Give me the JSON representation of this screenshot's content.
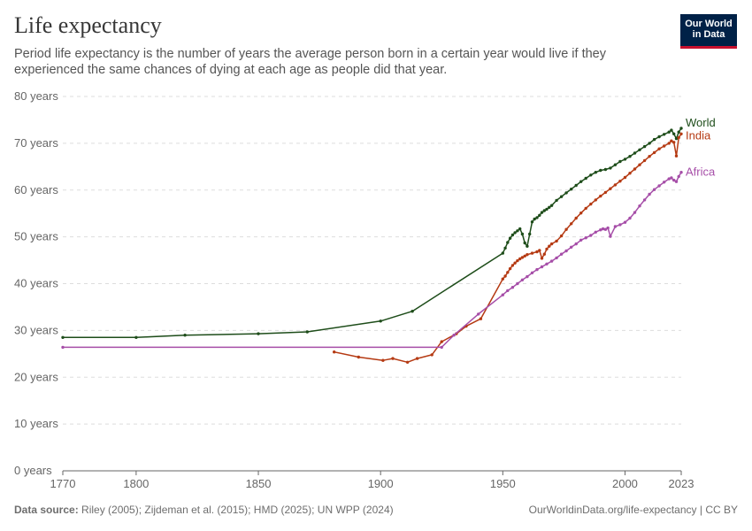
{
  "header": {
    "title": "Life expectancy",
    "subtitle": "Period life expectancy is the number of years the average person born in a certain year would live if they experienced the same chances of dying at each age as people did that year.",
    "logo_line1": "Our World",
    "logo_line2": "in Data"
  },
  "footer": {
    "source_label": "Data source:",
    "source_text": " Riley (2005); Zijdeman et al. (2015); HMD (2025); UN WPP (2024)",
    "link_text": "OurWorldinData.org/life-expectancy | CC BY"
  },
  "colors": {
    "World": "#1e4d1a",
    "India": "#b53a13",
    "Africa": "#a64ea8",
    "grid": "#dddddd",
    "axis": "#666666"
  },
  "chart_data": {
    "type": "line",
    "title": "Life expectancy",
    "xlim": [
      1770,
      2023
    ],
    "ylim": [
      0,
      80
    ],
    "x_ticks": [
      {
        "value": 1770,
        "label": "1770"
      },
      {
        "value": 1800,
        "label": "1800"
      },
      {
        "value": 1850,
        "label": "1850"
      },
      {
        "value": 1900,
        "label": "1900"
      },
      {
        "value": 1950,
        "label": "1950"
      },
      {
        "value": 2000,
        "label": "2000"
      },
      {
        "value": 2023,
        "label": "2023"
      }
    ],
    "y_ticks": [
      {
        "value": 0,
        "label": "0 years"
      },
      {
        "value": 10,
        "label": "10 years"
      },
      {
        "value": 20,
        "label": "20 years"
      },
      {
        "value": 30,
        "label": "30 years"
      },
      {
        "value": 40,
        "label": "40 years"
      },
      {
        "value": 50,
        "label": "50 years"
      },
      {
        "value": 60,
        "label": "60 years"
      },
      {
        "value": 70,
        "label": "70 years"
      },
      {
        "value": 80,
        "label": "80 years"
      }
    ],
    "grid": true,
    "legend": "line-end labels",
    "series": [
      {
        "name": "World",
        "x": [
          1770,
          1800,
          1820,
          1850,
          1870,
          1900,
          1913,
          1950,
          1951,
          1952,
          1953,
          1954,
          1955,
          1956,
          1957,
          1958,
          1959,
          1960,
          1961,
          1962,
          1963,
          1964,
          1965,
          1966,
          1967,
          1968,
          1969,
          1970,
          1972,
          1974,
          1976,
          1978,
          1980,
          1982,
          1984,
          1986,
          1988,
          1990,
          1992,
          1994,
          1996,
          1998,
          2000,
          2002,
          2004,
          2006,
          2008,
          2010,
          2012,
          2014,
          2016,
          2018,
          2019,
          2020,
          2021,
          2022,
          2023
        ],
        "y": [
          28.5,
          28.5,
          29.0,
          29.3,
          29.7,
          32.0,
          34.1,
          46.5,
          47.6,
          48.8,
          49.7,
          50.4,
          50.9,
          51.3,
          51.7,
          50.6,
          48.7,
          48.0,
          50.6,
          53.2,
          53.8,
          54.1,
          54.6,
          55.2,
          55.6,
          55.9,
          56.3,
          56.7,
          57.8,
          58.6,
          59.4,
          60.2,
          61.0,
          61.8,
          62.5,
          63.2,
          63.8,
          64.2,
          64.4,
          64.7,
          65.4,
          66.1,
          66.6,
          67.2,
          67.9,
          68.6,
          69.3,
          70.0,
          70.8,
          71.4,
          71.9,
          72.4,
          72.8,
          72.0,
          71.0,
          72.4,
          73.2
        ]
      },
      {
        "name": "India",
        "x": [
          1881,
          1891,
          1901,
          1905,
          1911,
          1915,
          1921,
          1925,
          1931,
          1935,
          1941,
          1950,
          1951,
          1952,
          1953,
          1954,
          1955,
          1956,
          1957,
          1958,
          1959,
          1960,
          1962,
          1964,
          1965,
          1966,
          1967,
          1968,
          1969,
          1970,
          1972,
          1974,
          1976,
          1978,
          1980,
          1982,
          1984,
          1986,
          1988,
          1990,
          1992,
          1994,
          1996,
          1998,
          2000,
          2002,
          2004,
          2006,
          2008,
          2010,
          2012,
          2014,
          2016,
          2018,
          2019,
          2020,
          2021,
          2022,
          2023
        ],
        "y": [
          25.4,
          24.3,
          23.6,
          24.0,
          23.2,
          24.0,
          24.8,
          27.6,
          29.3,
          30.9,
          32.5,
          41.0,
          41.6,
          42.4,
          43.2,
          43.9,
          44.4,
          44.9,
          45.3,
          45.6,
          45.9,
          46.2,
          46.5,
          46.8,
          47.1,
          45.4,
          46.3,
          47.4,
          48.0,
          48.5,
          49.1,
          50.2,
          51.6,
          52.8,
          54.0,
          55.1,
          56.1,
          57.0,
          57.9,
          58.7,
          59.5,
          60.3,
          61.1,
          61.9,
          62.7,
          63.6,
          64.5,
          65.4,
          66.3,
          67.2,
          68.0,
          68.8,
          69.4,
          70.0,
          70.5,
          70.2,
          67.3,
          71.2,
          72.0
        ]
      },
      {
        "name": "Africa",
        "x": [
          1770,
          1925,
          1930,
          1940,
          1950,
          1952,
          1954,
          1956,
          1958,
          1960,
          1962,
          1964,
          1966,
          1968,
          1970,
          1972,
          1974,
          1976,
          1978,
          1980,
          1982,
          1984,
          1986,
          1988,
          1990,
          1991,
          1992,
          1993,
          1994,
          1996,
          1998,
          2000,
          2002,
          2004,
          2006,
          2008,
          2010,
          2012,
          2014,
          2016,
          2018,
          2019,
          2020,
          2021,
          2022,
          2023
        ],
        "y": [
          26.4,
          26.4,
          29.0,
          33.5,
          37.6,
          38.5,
          39.2,
          40.0,
          40.8,
          41.5,
          42.3,
          43.0,
          43.6,
          44.2,
          44.8,
          45.5,
          46.3,
          47.0,
          47.8,
          48.5,
          49.3,
          49.8,
          50.3,
          51.0,
          51.5,
          51.7,
          51.6,
          51.9,
          50.1,
          52.2,
          52.6,
          53.1,
          54.0,
          55.2,
          56.6,
          57.9,
          59.1,
          60.1,
          60.9,
          61.7,
          62.4,
          62.6,
          62.1,
          61.8,
          62.9,
          63.8
        ]
      }
    ]
  }
}
